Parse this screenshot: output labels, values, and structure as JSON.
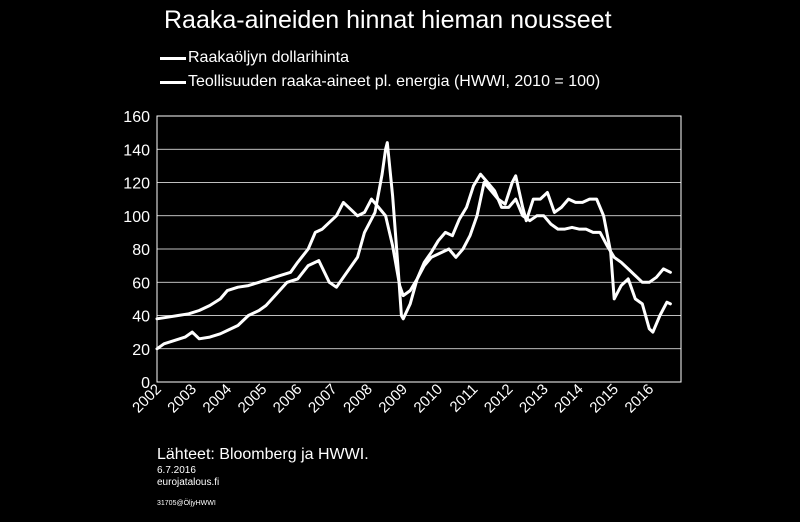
{
  "chart_data": {
    "type": "line",
    "title": "Raaka-aineiden hinnat hieman nousseet",
    "legend_position": "top-left",
    "grid": true,
    "ylim": [
      0,
      160
    ],
    "yticks": [
      0,
      20,
      40,
      60,
      80,
      100,
      120,
      140,
      160
    ],
    "xlim": [
      2002,
      2016.9
    ],
    "xticks": [
      "2002",
      "2003",
      "2004",
      "2005",
      "2006",
      "2007",
      "2008",
      "2009",
      "2010",
      "2011",
      "2012",
      "2013",
      "2014",
      "2015",
      "2016"
    ],
    "series": [
      {
        "name": "Raakaöljyn dollarihinta",
        "points": [
          [
            2002.0,
            20
          ],
          [
            2002.2,
            23
          ],
          [
            2002.5,
            25
          ],
          [
            2002.8,
            27
          ],
          [
            2003.0,
            30
          ],
          [
            2003.2,
            26
          ],
          [
            2003.5,
            27
          ],
          [
            2003.8,
            29
          ],
          [
            2004.0,
            31
          ],
          [
            2004.3,
            34
          ],
          [
            2004.6,
            40
          ],
          [
            2004.9,
            43
          ],
          [
            2005.1,
            46
          ],
          [
            2005.4,
            53
          ],
          [
            2005.7,
            60
          ],
          [
            2006.0,
            62
          ],
          [
            2006.3,
            70
          ],
          [
            2006.6,
            73
          ],
          [
            2006.9,
            60
          ],
          [
            2007.1,
            57
          ],
          [
            2007.4,
            66
          ],
          [
            2007.7,
            75
          ],
          [
            2007.9,
            90
          ],
          [
            2008.2,
            102
          ],
          [
            2008.4,
            125
          ],
          [
            2008.5,
            140
          ],
          [
            2008.55,
            144
          ],
          [
            2008.7,
            112
          ],
          [
            2008.85,
            70
          ],
          [
            2008.95,
            40
          ],
          [
            2009.0,
            38
          ],
          [
            2009.2,
            47
          ],
          [
            2009.4,
            62
          ],
          [
            2009.6,
            70
          ],
          [
            2009.8,
            75
          ],
          [
            2010.0,
            77
          ],
          [
            2010.3,
            80
          ],
          [
            2010.5,
            75
          ],
          [
            2010.7,
            80
          ],
          [
            2010.9,
            88
          ],
          [
            2011.1,
            100
          ],
          [
            2011.3,
            120
          ],
          [
            2011.5,
            115
          ],
          [
            2011.7,
            110
          ],
          [
            2011.9,
            107
          ],
          [
            2012.1,
            120
          ],
          [
            2012.2,
            124
          ],
          [
            2012.4,
            105
          ],
          [
            2012.5,
            97
          ],
          [
            2012.7,
            110
          ],
          [
            2012.9,
            110
          ],
          [
            2013.1,
            114
          ],
          [
            2013.3,
            102
          ],
          [
            2013.5,
            105
          ],
          [
            2013.7,
            110
          ],
          [
            2013.9,
            108
          ],
          [
            2014.1,
            108
          ],
          [
            2014.3,
            110
          ],
          [
            2014.5,
            110
          ],
          [
            2014.7,
            100
          ],
          [
            2014.9,
            78
          ],
          [
            2015.0,
            50
          ],
          [
            2015.2,
            58
          ],
          [
            2015.4,
            62
          ],
          [
            2015.6,
            50
          ],
          [
            2015.8,
            47
          ],
          [
            2016.0,
            32
          ],
          [
            2016.1,
            30
          ],
          [
            2016.3,
            40
          ],
          [
            2016.5,
            48
          ],
          [
            2016.6,
            47
          ]
        ]
      },
      {
        "name": "Teollisuuden raaka-aineet pl. energia (HWWI, 2010 = 100)",
        "points": [
          [
            2002.0,
            38
          ],
          [
            2002.3,
            39
          ],
          [
            2002.6,
            40
          ],
          [
            2002.9,
            41
          ],
          [
            2003.2,
            43
          ],
          [
            2003.5,
            46
          ],
          [
            2003.8,
            50
          ],
          [
            2004.0,
            55
          ],
          [
            2004.3,
            57
          ],
          [
            2004.6,
            58
          ],
          [
            2004.9,
            60
          ],
          [
            2005.2,
            62
          ],
          [
            2005.5,
            64
          ],
          [
            2005.8,
            66
          ],
          [
            2006.0,
            72
          ],
          [
            2006.3,
            80
          ],
          [
            2006.5,
            90
          ],
          [
            2006.7,
            92
          ],
          [
            2006.9,
            96
          ],
          [
            2007.1,
            100
          ],
          [
            2007.3,
            108
          ],
          [
            2007.5,
            104
          ],
          [
            2007.7,
            100
          ],
          [
            2007.9,
            102
          ],
          [
            2008.1,
            110
          ],
          [
            2008.3,
            105
          ],
          [
            2008.5,
            100
          ],
          [
            2008.7,
            82
          ],
          [
            2008.9,
            58
          ],
          [
            2009.0,
            52
          ],
          [
            2009.2,
            55
          ],
          [
            2009.4,
            62
          ],
          [
            2009.6,
            72
          ],
          [
            2009.8,
            78
          ],
          [
            2010.0,
            85
          ],
          [
            2010.2,
            90
          ],
          [
            2010.4,
            88
          ],
          [
            2010.6,
            98
          ],
          [
            2010.8,
            105
          ],
          [
            2011.0,
            118
          ],
          [
            2011.2,
            125
          ],
          [
            2011.4,
            120
          ],
          [
            2011.6,
            115
          ],
          [
            2011.8,
            105
          ],
          [
            2012.0,
            105
          ],
          [
            2012.2,
            110
          ],
          [
            2012.4,
            100
          ],
          [
            2012.6,
            97
          ],
          [
            2012.8,
            100
          ],
          [
            2013.0,
            100
          ],
          [
            2013.2,
            95
          ],
          [
            2013.4,
            92
          ],
          [
            2013.6,
            92
          ],
          [
            2013.8,
            93
          ],
          [
            2014.0,
            92
          ],
          [
            2014.2,
            92
          ],
          [
            2014.4,
            90
          ],
          [
            2014.6,
            90
          ],
          [
            2014.8,
            82
          ],
          [
            2015.0,
            75
          ],
          [
            2015.2,
            72
          ],
          [
            2015.4,
            68
          ],
          [
            2015.6,
            64
          ],
          [
            2015.8,
            60
          ],
          [
            2016.0,
            60
          ],
          [
            2016.2,
            63
          ],
          [
            2016.4,
            68
          ],
          [
            2016.6,
            66
          ]
        ]
      }
    ]
  },
  "footer": {
    "source": "Lähteet: Bloomberg ja HWWI.",
    "date": "6.7.2016",
    "site": "eurojatalous.fi",
    "code": "31705@ÖljyHWWI"
  }
}
